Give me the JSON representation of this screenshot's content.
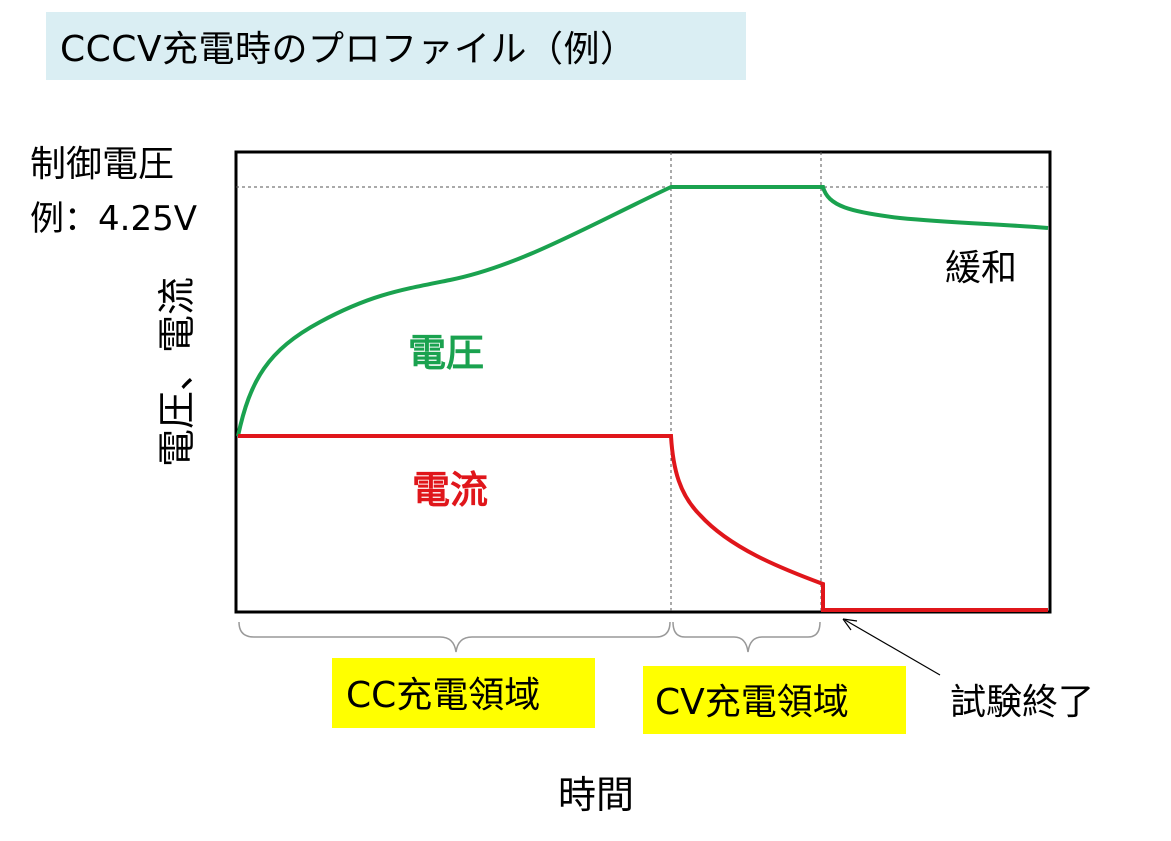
{
  "title": "CCCV充電時のプロファイル（例）",
  "y_axis": {
    "control_voltage_line1": "制御電圧",
    "control_voltage_line2": "例：4.25V",
    "label": "電圧、電流"
  },
  "x_axis": {
    "label": "時間"
  },
  "curves": {
    "voltage": {
      "label": "電圧",
      "color": "#1aa24f"
    },
    "current": {
      "label": "電流",
      "color": "#e0161b"
    }
  },
  "annotations": {
    "relaxation": "緩和",
    "test_end": "試験終了"
  },
  "regions": {
    "cc": {
      "label": "CC充電領域",
      "highlight": "#ffff00"
    },
    "cv": {
      "label": "CV充電領域",
      "highlight": "#ffff00"
    }
  }
}
